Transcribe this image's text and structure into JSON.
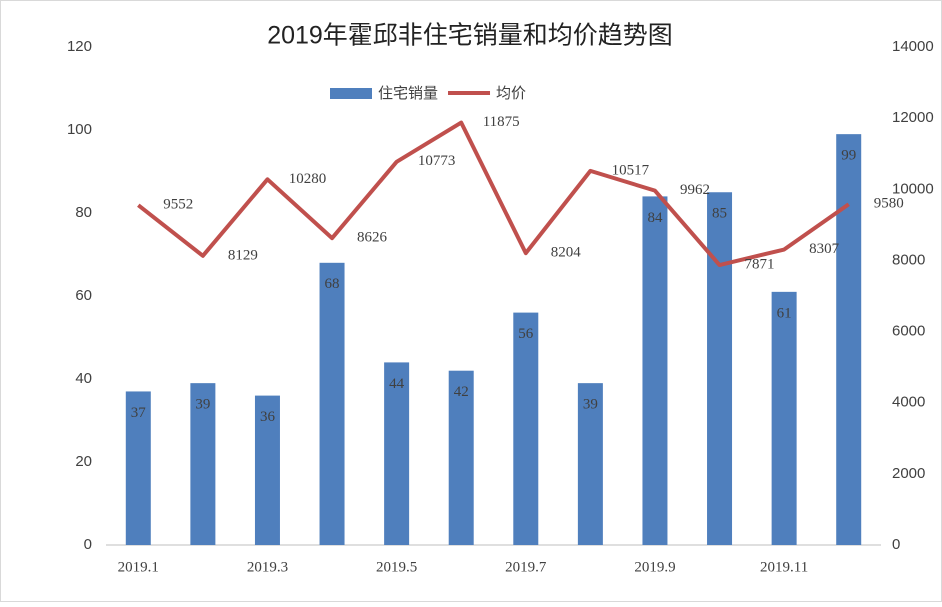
{
  "chart_data": {
    "type": "bar-line",
    "title": "2019年霍邱非住宅销量和均价趋势图",
    "categories": [
      "2019.1",
      null,
      "2019.3",
      null,
      "2019.5",
      null,
      "2019.7",
      null,
      "2019.9",
      null,
      "2019.11",
      null
    ],
    "series": [
      {
        "name": "住宅销量",
        "type": "bar",
        "color": "#4f7fbd",
        "values": [
          37,
          39,
          36,
          68,
          44,
          42,
          56,
          39,
          84,
          85,
          61,
          99
        ]
      },
      {
        "name": "均价",
        "type": "line",
        "axis": "y2",
        "color": "#c0504d",
        "values": [
          9552,
          8129,
          10280,
          8626,
          10773,
          11875,
          8204,
          10517,
          9962,
          7871,
          8307,
          9580
        ]
      }
    ],
    "ylim": [
      0,
      120
    ],
    "yticks": [
      0,
      20,
      40,
      60,
      80,
      100,
      120
    ],
    "y2lim": [
      0,
      14000
    ],
    "y2ticks": [
      0,
      2000,
      4000,
      6000,
      8000,
      10000,
      12000,
      14000
    ],
    "grid": false,
    "legend": "top"
  }
}
